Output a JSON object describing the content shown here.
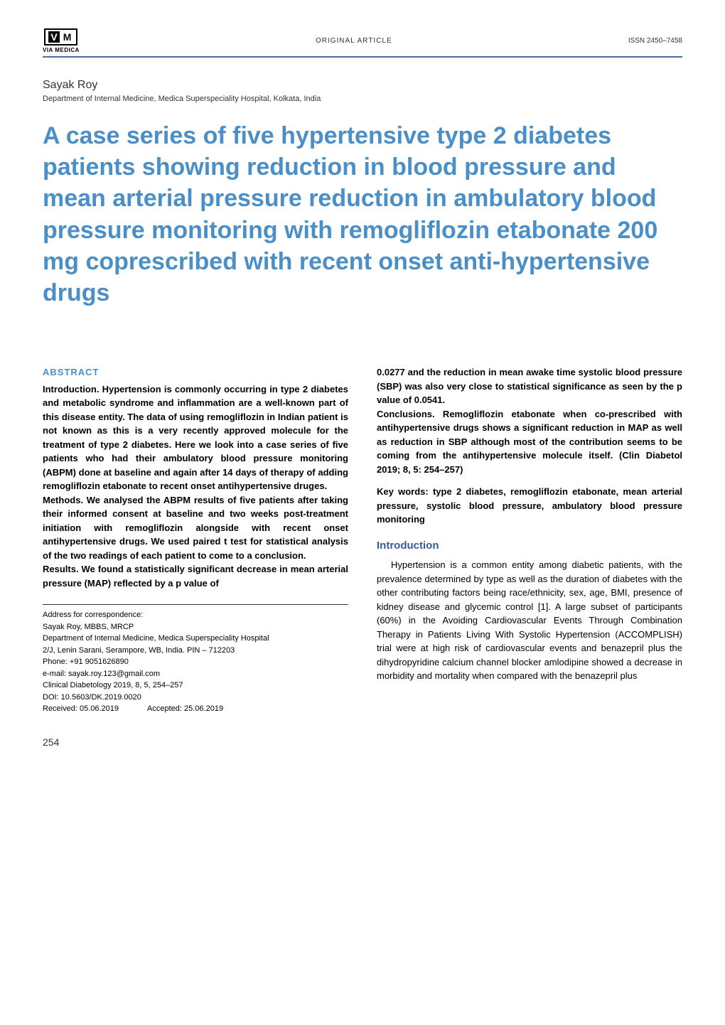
{
  "header": {
    "logo_text": "VIA MEDICA",
    "article_type": "ORIGINAL ARTICLE",
    "issn": "ISSN 2450–7458"
  },
  "author": {
    "name": "Sayak Roy",
    "affiliation": "Department of Internal Medicine, Medica Superspeciality Hospital, Kolkata, India"
  },
  "title": "A case series of five hypertensive type 2 diabetes patients showing reduction in blood pressure and mean arterial pressure reduction in ambulatory blood pressure monitoring with remogliflozin etabonate 200 mg coprescribed with recent onset anti-hypertensive drugs",
  "abstract": {
    "heading": "ABSTRACT",
    "introduction": "Introduction. Hypertension is commonly occurring in type 2 diabetes and metabolic syndrome and inflammation are a well-known part of this disease entity. The data of using remogliflozin in Indian patient is not known as this is a very recently approved molecule for the treatment of type 2 diabetes. Here we look into a case series of five patients who had their ambulatory blood pressure monitoring (ABPM) done at baseline and again after 14 days of therapy of adding remogliflozin etabonate to recent onset antihypertensive druges.",
    "methods": "Methods. We analysed the ABPM results of five patients after taking their informed consent at baseline and two weeks post-treatment initiation with remogliflozin alongside with recent onset antihypertensive drugs. We used paired t test for statistical analysis of the two readings of each patient to come to a conclusion.",
    "results": "Results. We found a statistically significant decrease in mean arterial pressure (MAP) reflected by a p value of",
    "results_cont": "0.0277 and the reduction in mean awake time systolic blood pressure (SBP) was also very close to statistical significance as seen by the p value of 0.0541.",
    "conclusions": "Conclusions. Remogliflozin etabonate when co-prescribed with antihypertensive drugs shows a significant reduction in MAP as well as reduction in SBP although most of the contribution seems to be coming from the antihypertensive molecule itself. (Clin Diabetol 2019; 8, 5: 254–257)",
    "keywords": "Key words: type 2 diabetes, remogliflozin etabonate, mean arterial pressure, systolic blood pressure, ambulatory blood pressure monitoring"
  },
  "introduction": {
    "heading": "Introduction",
    "text": "Hypertension is a common entity among diabetic patients, with the prevalence determined by type as well as the duration of diabetes with the other contributing factors being race/ethnicity, sex, age, BMI, presence of kidney disease and glycemic control [1]. A large subset of participants (60%) in the Avoiding Cardiovascular Events Through Combination Therapy in Patients Living With Systolic Hypertension (ACCOMPLISH) trial were at high risk of cardiovascular events and benazepril plus the dihydropyridine calcium channel blocker amlodipine showed a decrease in morbidity and mortality when compared with the benazepril plus"
  },
  "correspondence": {
    "label": "Address for correspondence:",
    "name": "Sayak Roy, MBBS, MRCP",
    "dept": "Department of Internal Medicine, Medica Superspeciality Hospital",
    "address": "2/J, Lenin Sarani, Serampore, WB, India. PIN – 712203",
    "phone": "Phone: +91 9051626890",
    "email": "e-mail: sayak.roy.123@gmail.com",
    "journal": "Clinical Diabetology 2019, 8, 5, 254–257",
    "doi": "DOI: 10.5603/DK.2019.0020",
    "received": "Received: 05.06.2019",
    "accepted": "Accepted: 25.06.2019"
  },
  "page_number": "254",
  "colors": {
    "title_color": "#4a8fc7",
    "section_heading_color": "#3b5998",
    "header_border": "#4a6fa5",
    "text_color": "#000000",
    "background": "#ffffff"
  },
  "typography": {
    "title_fontsize": 34,
    "body_fontsize": 13,
    "author_fontsize": 16,
    "affiliation_fontsize": 11,
    "header_fontsize": 10,
    "correspondence_fontsize": 11
  }
}
